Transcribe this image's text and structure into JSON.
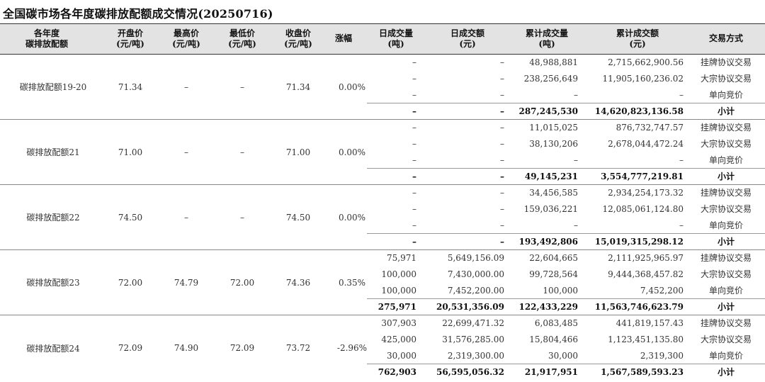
{
  "title": "全国碳市场各年度碳排放配额成交情况(20250716)",
  "headers": {
    "vintage": [
      "各年度",
      "碳排放配额"
    ],
    "open": [
      "开盘价",
      "(元/吨)"
    ],
    "high": [
      "最高价",
      "(元/吨)"
    ],
    "low": [
      "最低价",
      "(元/吨)"
    ],
    "close": [
      "收盘价",
      "(元/吨)"
    ],
    "change": [
      "涨幅"
    ],
    "daily_volume": [
      "日成交量",
      "(吨)"
    ],
    "daily_amount": [
      "日成交额",
      "(元)"
    ],
    "cum_volume": [
      "累计成交量",
      "(吨)"
    ],
    "cum_amount": [
      "累计成交额",
      "(元)"
    ],
    "method": [
      "交易方式"
    ]
  },
  "groups": [
    {
      "name": "碳排放配额19-20",
      "open": "71.34",
      "high": "–",
      "low": "–",
      "close": "71.34",
      "change": "0.00%",
      "rows": [
        {
          "daily_volume": "–",
          "daily_amount": "–",
          "cum_volume": "48,988,881",
          "cum_amount": "2,715,662,900.56",
          "method": "挂牌协议交易"
        },
        {
          "daily_volume": "–",
          "daily_amount": "–",
          "cum_volume": "238,256,649",
          "cum_amount": "11,905,160,236.02",
          "method": "大宗协议交易"
        },
        {
          "daily_volume": "–",
          "daily_amount": "–",
          "cum_volume": "–",
          "cum_amount": "–",
          "method": "单向竞价"
        },
        {
          "daily_volume": "–",
          "daily_amount": "–",
          "cum_volume": "287,245,530",
          "cum_amount": "14,620,823,136.58",
          "method": "小计"
        }
      ]
    },
    {
      "name": "碳排放配额21",
      "open": "71.00",
      "high": "–",
      "low": "–",
      "close": "71.00",
      "change": "0.00%",
      "rows": [
        {
          "daily_volume": "–",
          "daily_amount": "–",
          "cum_volume": "11,015,025",
          "cum_amount": "876,732,747.57",
          "method": "挂牌协议交易"
        },
        {
          "daily_volume": "–",
          "daily_amount": "–",
          "cum_volume": "38,130,206",
          "cum_amount": "2,678,044,472.24",
          "method": "大宗协议交易"
        },
        {
          "daily_volume": "–",
          "daily_amount": "–",
          "cum_volume": "–",
          "cum_amount": "–",
          "method": "单向竞价"
        },
        {
          "daily_volume": "–",
          "daily_amount": "–",
          "cum_volume": "49,145,231",
          "cum_amount": "3,554,777,219.81",
          "method": "小计"
        }
      ]
    },
    {
      "name": "碳排放配额22",
      "open": "74.50",
      "high": "–",
      "low": "–",
      "close": "74.50",
      "change": "0.00%",
      "rows": [
        {
          "daily_volume": "–",
          "daily_amount": "–",
          "cum_volume": "34,456,585",
          "cum_amount": "2,934,254,173.32",
          "method": "挂牌协议交易"
        },
        {
          "daily_volume": "–",
          "daily_amount": "–",
          "cum_volume": "159,036,221",
          "cum_amount": "12,085,061,124.80",
          "method": "大宗协议交易"
        },
        {
          "daily_volume": "–",
          "daily_amount": "–",
          "cum_volume": "–",
          "cum_amount": "–",
          "method": "单向竞价"
        },
        {
          "daily_volume": "–",
          "daily_amount": "–",
          "cum_volume": "193,492,806",
          "cum_amount": "15,019,315,298.12",
          "method": "小计"
        }
      ]
    },
    {
      "name": "碳排放配额23",
      "open": "72.00",
      "high": "74.79",
      "low": "72.00",
      "close": "74.36",
      "change": "0.35%",
      "rows": [
        {
          "daily_volume": "75,971",
          "daily_amount": "5,649,156.09",
          "cum_volume": "22,604,665",
          "cum_amount": "2,111,925,965.97",
          "method": "挂牌协议交易"
        },
        {
          "daily_volume": "100,000",
          "daily_amount": "7,430,000.00",
          "cum_volume": "99,728,564",
          "cum_amount": "9,444,368,457.82",
          "method": "大宗协议交易"
        },
        {
          "daily_volume": "100,000",
          "daily_amount": "7,452,200.00",
          "cum_volume": "100,000",
          "cum_amount": "7,452,200",
          "method": "单向竞价"
        },
        {
          "daily_volume": "275,971",
          "daily_amount": "20,531,356.09",
          "cum_volume": "122,433,229",
          "cum_amount": "11,563,746,623.79",
          "method": "小计"
        }
      ]
    },
    {
      "name": "碳排放配额24",
      "open": "72.09",
      "high": "74.90",
      "low": "72.09",
      "close": "73.72",
      "change": "-2.96%",
      "rows": [
        {
          "daily_volume": "307,903",
          "daily_amount": "22,699,471.32",
          "cum_volume": "6,083,485",
          "cum_amount": "441,819,157.43",
          "method": "挂牌协议交易"
        },
        {
          "daily_volume": "425,000",
          "daily_amount": "31,576,285.00",
          "cum_volume": "15,804,466",
          "cum_amount": "1,123,451,135.80",
          "method": "大宗协议交易"
        },
        {
          "daily_volume": "30,000",
          "daily_amount": "2,319,300.00",
          "cum_volume": "30,000",
          "cum_amount": "2,319,300",
          "method": "单向竞价"
        },
        {
          "daily_volume": "762,903",
          "daily_amount": "56,595,056.32",
          "cum_volume": "21,917,951",
          "cum_amount": "1,567,589,593.23",
          "method": "小计"
        }
      ]
    }
  ]
}
